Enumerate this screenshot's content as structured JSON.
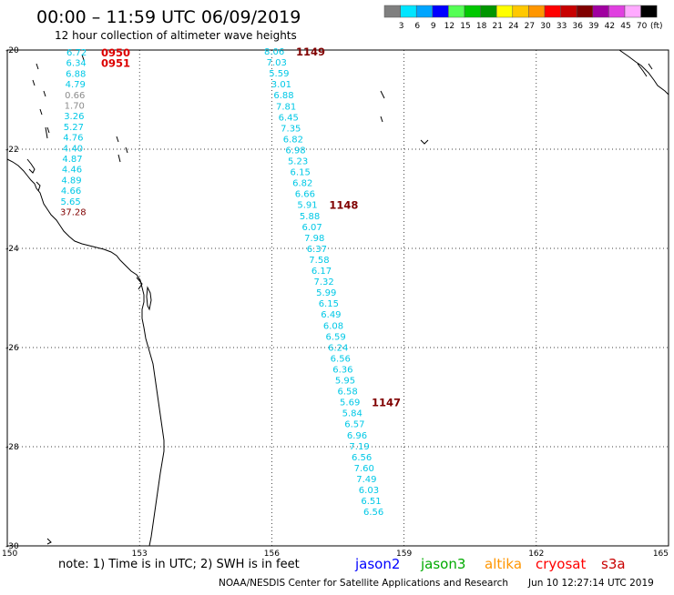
{
  "header": {
    "title": "00:00 – 11:59 UTC 06/09/2019",
    "subtitle": "12 hour collection of altimeter wave heights"
  },
  "legend": {
    "unit": "(ft)",
    "bins": [
      {
        "label": "3",
        "color": "#7f7f7f"
      },
      {
        "label": "6",
        "color": "#00e5ff"
      },
      {
        "label": "9",
        "color": "#00a5ff"
      },
      {
        "label": "12",
        "color": "#0000ff"
      },
      {
        "label": "15",
        "color": "#55ff55"
      },
      {
        "label": "18",
        "color": "#00c800"
      },
      {
        "label": "21",
        "color": "#009600"
      },
      {
        "label": "24",
        "color": "#ffff00"
      },
      {
        "label": "27",
        "color": "#ffc800"
      },
      {
        "label": "30",
        "color": "#ff9600"
      },
      {
        "label": "33",
        "color": "#ff0000"
      },
      {
        "label": "36",
        "color": "#c80000"
      },
      {
        "label": "39",
        "color": "#800000"
      },
      {
        "label": "42",
        "color": "#a000a0"
      },
      {
        "label": "45",
        "color": "#e040e0"
      },
      {
        "label": "70",
        "color": "#ffaaff"
      },
      {
        "label": "",
        "color": "#000000"
      }
    ]
  },
  "map": {
    "lon_range": [
      150,
      165
    ],
    "lat_range": [
      -30,
      -20
    ],
    "lon_ticks": [
      "150",
      "153",
      "156",
      "159",
      "162",
      "165"
    ],
    "lat_ticks": [
      "-20",
      "-22",
      "-24",
      "-26",
      "-28",
      "-30"
    ],
    "colors": {
      "cyan": "#00c8e6",
      "gray": "#8c8c8c",
      "red": "#dc0000",
      "darkred": "#800000"
    },
    "tracks": [
      {
        "id": "west-track",
        "time_labels": [
          {
            "text": "0950",
            "row": 0,
            "color": "red"
          },
          {
            "text": "0951",
            "row": 1,
            "color": "red"
          }
        ],
        "values": [
          {
            "v": "6.72",
            "c": "cyan"
          },
          {
            "v": "6.34",
            "c": "cyan"
          },
          {
            "v": "6.88",
            "c": "cyan"
          },
          {
            "v": "4.79",
            "c": "cyan"
          },
          {
            "v": "0.66",
            "c": "gray"
          },
          {
            "v": "1.70",
            "c": "gray"
          },
          {
            "v": "3.26",
            "c": "cyan"
          },
          {
            "v": "5.27",
            "c": "cyan"
          },
          {
            "v": "4.76",
            "c": "cyan"
          },
          {
            "v": "4.40",
            "c": "cyan"
          },
          {
            "v": "4.87",
            "c": "cyan"
          },
          {
            "v": "4.46",
            "c": "cyan"
          },
          {
            "v": "4.89",
            "c": "cyan"
          },
          {
            "v": "4.66",
            "c": "cyan"
          },
          {
            "v": "5.65",
            "c": "cyan"
          },
          {
            "v": "37.28",
            "c": "darkred"
          }
        ]
      },
      {
        "id": "east-track",
        "time_labels": [
          {
            "text": "1149",
            "row": 0,
            "color": "darkred"
          },
          {
            "text": "1148",
            "row": 14,
            "color": "darkred"
          },
          {
            "text": "1147",
            "row": 32,
            "color": "darkred"
          }
        ],
        "values": [
          {
            "v": "8.06",
            "c": "cyan"
          },
          {
            "v": "7.03",
            "c": "cyan"
          },
          {
            "v": "5.59",
            "c": "cyan"
          },
          {
            "v": "3.01",
            "c": "cyan"
          },
          {
            "v": "6.88",
            "c": "cyan"
          },
          {
            "v": "7.81",
            "c": "cyan"
          },
          {
            "v": "6.45",
            "c": "cyan"
          },
          {
            "v": "7.35",
            "c": "cyan"
          },
          {
            "v": "6.82",
            "c": "cyan"
          },
          {
            "v": "6.98",
            "c": "cyan"
          },
          {
            "v": "5.23",
            "c": "cyan"
          },
          {
            "v": "6.15",
            "c": "cyan"
          },
          {
            "v": "6.82",
            "c": "cyan"
          },
          {
            "v": "6.66",
            "c": "cyan"
          },
          {
            "v": "5.91",
            "c": "cyan"
          },
          {
            "v": "5.88",
            "c": "cyan"
          },
          {
            "v": "6.07",
            "c": "cyan"
          },
          {
            "v": "7.98",
            "c": "cyan"
          },
          {
            "v": "6.37",
            "c": "cyan"
          },
          {
            "v": "7.58",
            "c": "cyan"
          },
          {
            "v": "6.17",
            "c": "cyan"
          },
          {
            "v": "7.32",
            "c": "cyan"
          },
          {
            "v": "5.99",
            "c": "cyan"
          },
          {
            "v": "6.15",
            "c": "cyan"
          },
          {
            "v": "6.49",
            "c": "cyan"
          },
          {
            "v": "6.08",
            "c": "cyan"
          },
          {
            "v": "6.59",
            "c": "cyan"
          },
          {
            "v": "6.24",
            "c": "cyan"
          },
          {
            "v": "6.56",
            "c": "cyan"
          },
          {
            "v": "6.36",
            "c": "cyan"
          },
          {
            "v": "5.95",
            "c": "cyan"
          },
          {
            "v": "6.58",
            "c": "cyan"
          },
          {
            "v": "5.69",
            "c": "cyan"
          },
          {
            "v": "5.84",
            "c": "cyan"
          },
          {
            "v": "6.57",
            "c": "cyan"
          },
          {
            "v": "6.96",
            "c": "cyan"
          },
          {
            "v": "7.19",
            "c": "cyan"
          },
          {
            "v": "6.56",
            "c": "cyan"
          },
          {
            "v": "7.60",
            "c": "cyan"
          },
          {
            "v": "7.49",
            "c": "cyan"
          },
          {
            "v": "6.03",
            "c": "cyan"
          },
          {
            "v": "6.51",
            "c": "cyan"
          },
          {
            "v": "6.56",
            "c": "cyan"
          }
        ]
      }
    ]
  },
  "footer": {
    "note": "note:  1) Time is in UTC;  2) SWH is in feet",
    "satellites": [
      {
        "name": "jason2",
        "color": "#0000ff"
      },
      {
        "name": "jason3",
        "color": "#00aa00"
      },
      {
        "name": "altika",
        "color": "#ff9600"
      },
      {
        "name": "cryosat",
        "color": "#ff0000"
      },
      {
        "name": "s3a",
        "color": "#c80000"
      }
    ],
    "credit": "NOAA/NESDIS Center for Satellite Applications and Research",
    "timestamp": "Jun 10 12:27:14 UTC 2019"
  }
}
